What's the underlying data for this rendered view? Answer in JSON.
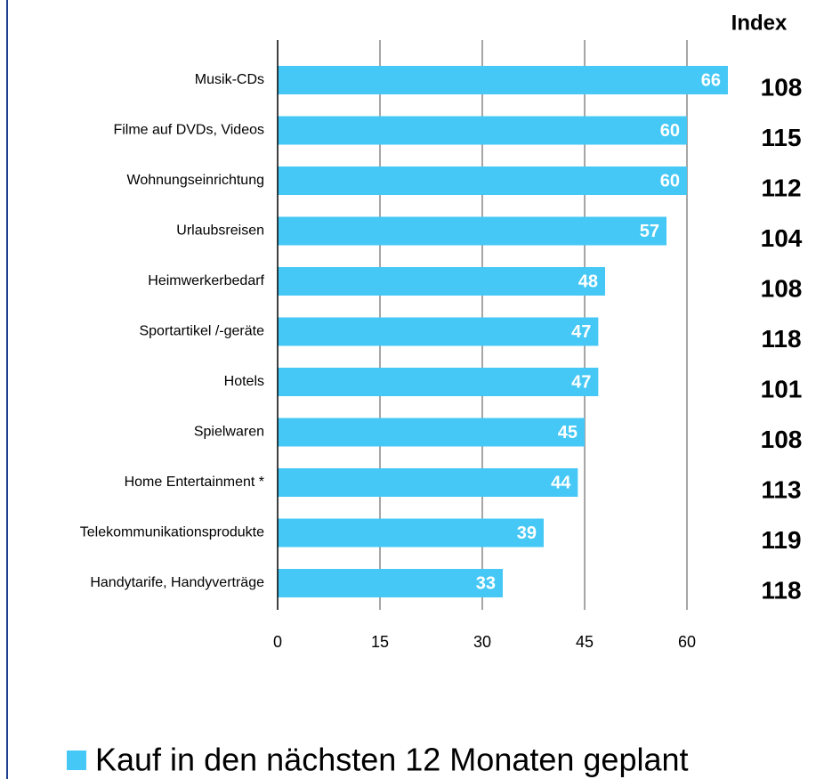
{
  "chart_data": {
    "type": "bar",
    "orientation": "horizontal",
    "categories": [
      "Musik-CDs",
      "Filme auf DVDs, Videos",
      "Wohnungseinrichtung",
      "Urlaubsreisen",
      "Heimwerkerbedarf",
      "Sportartikel /-geräte",
      "Hotels",
      "Spielwaren",
      "Home Entertainment *",
      "Telekommunikationsprodukte",
      "Handytarife, Handyverträge"
    ],
    "series": [
      {
        "name": "Kauf in den nächsten 12 Monaten geplant",
        "color": "#45c8f5",
        "values": [
          66,
          60,
          60,
          57,
          48,
          47,
          47,
          45,
          44,
          39,
          33
        ]
      }
    ],
    "index_title": "Index",
    "index_values": [
      108,
      115,
      112,
      104,
      108,
      118,
      101,
      108,
      113,
      119,
      118
    ],
    "xlim": [
      0,
      66
    ],
    "xticks": [
      0,
      15,
      30,
      45,
      60
    ],
    "grid": true
  }
}
